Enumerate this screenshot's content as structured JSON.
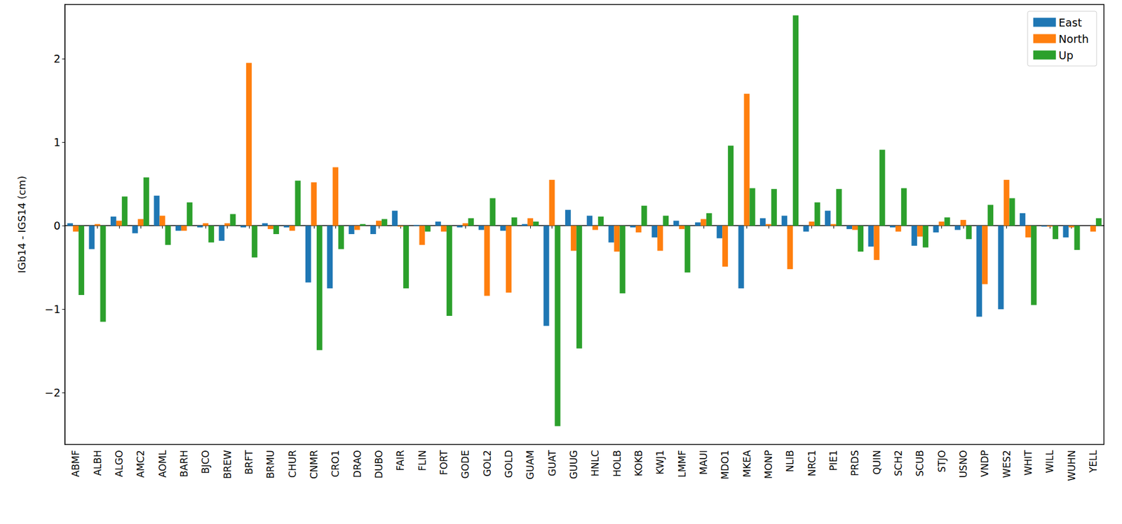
{
  "chart_data": {
    "type": "bar",
    "y_label": "IGb14 - IGS14 (cm)",
    "categories": [
      "ABMF",
      "ALBH",
      "ALGO",
      "AMC2",
      "AOML",
      "BARH",
      "BJCO",
      "BREW",
      "BRFT",
      "BRMU",
      "CHUR",
      "CNMR",
      "CRO1",
      "DRAO",
      "DUBO",
      "FAIR",
      "FLIN",
      "FORT",
      "GODE",
      "GOL2",
      "GOLD",
      "GUAM",
      "GUAT",
      "GUUG",
      "HNLC",
      "HOLB",
      "KOKB",
      "KWJ1",
      "LMMF",
      "MAUI",
      "MDO1",
      "MKEA",
      "MONP",
      "NLIB",
      "NRC1",
      "PIE1",
      "PRDS",
      "QUIN",
      "SCH2",
      "SCUB",
      "STJO",
      "USNO",
      "VNDP",
      "WES2",
      "WHIT",
      "WILL",
      "WUHN",
      "YELL"
    ],
    "series": [
      {
        "name": "East",
        "color": "#1f77b4",
        "values": [
          0.03,
          -0.28,
          0.11,
          -0.09,
          0.36,
          -0.06,
          -0.02,
          -0.18,
          -0.02,
          0.03,
          -0.02,
          -0.68,
          -0.75,
          -0.1,
          -0.1,
          0.18,
          0.01,
          0.05,
          -0.02,
          -0.05,
          -0.06,
          0.02,
          -1.2,
          0.19,
          0.12,
          -0.2,
          -0.02,
          -0.14,
          0.06,
          0.04,
          -0.15,
          -0.75,
          0.09,
          0.12,
          -0.07,
          0.18,
          -0.04,
          -0.25,
          -0.02,
          -0.24,
          -0.08,
          -0.05,
          -1.09,
          -1.0,
          0.15,
          -0.01,
          -0.14,
          0.0
        ]
      },
      {
        "name": "North",
        "color": "#ff7f0e",
        "values": [
          -0.07,
          0.02,
          0.06,
          0.08,
          0.12,
          -0.06,
          0.03,
          0.03,
          1.95,
          -0.04,
          -0.06,
          0.52,
          0.7,
          -0.05,
          0.06,
          -0.01,
          -0.23,
          -0.07,
          0.03,
          -0.84,
          -0.8,
          0.09,
          0.55,
          -0.3,
          -0.05,
          -0.31,
          -0.08,
          -0.3,
          -0.04,
          0.08,
          -0.49,
          1.58,
          0.02,
          -0.52,
          0.05,
          0.02,
          -0.05,
          -0.41,
          -0.07,
          -0.13,
          0.05,
          0.07,
          -0.7,
          0.55,
          -0.14,
          -0.01,
          -0.02,
          -0.07
        ]
      },
      {
        "name": "Up",
        "color": "#2ca02c",
        "values": [
          -0.83,
          -1.15,
          0.35,
          0.58,
          -0.23,
          0.28,
          -0.2,
          0.14,
          -0.38,
          -0.1,
          0.54,
          -1.49,
          -0.28,
          0.02,
          0.08,
          -0.75,
          -0.07,
          -1.08,
          0.09,
          0.33,
          0.1,
          0.05,
          -2.4,
          -1.47,
          0.11,
          -0.81,
          0.24,
          0.12,
          -0.56,
          0.15,
          0.96,
          0.45,
          0.44,
          2.52,
          0.28,
          0.44,
          -0.31,
          0.91,
          0.45,
          -0.26,
          0.1,
          -0.16,
          0.25,
          0.33,
          -0.95,
          -0.16,
          -0.29,
          0.09
        ]
      }
    ],
    "ylim": [
      -2.62,
      2.65
    ],
    "yticks": [
      {
        "value": -2,
        "label": "−2"
      },
      {
        "value": -1,
        "label": "−1"
      },
      0,
      1,
      2
    ],
    "grid": false,
    "legend": "upper right"
  }
}
